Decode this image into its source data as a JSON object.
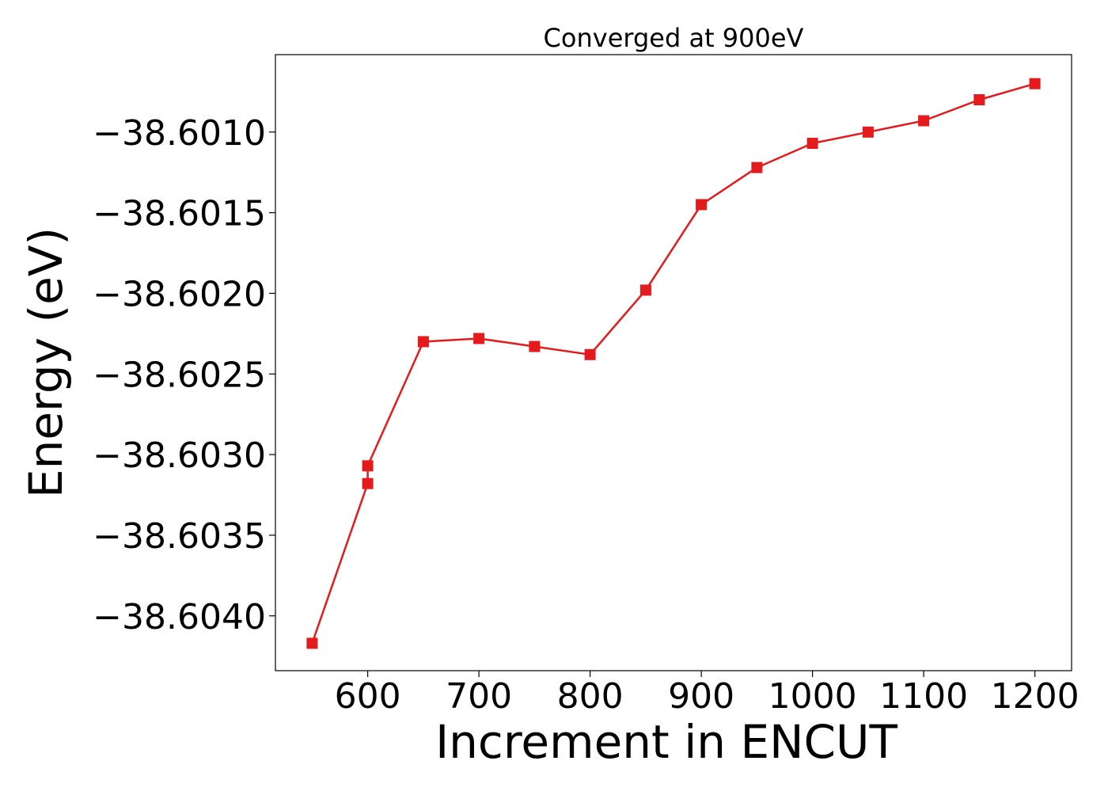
{
  "chart_data": {
    "type": "line",
    "title": "Converged at 900eV",
    "xlabel": "Increment in ENCUT",
    "ylabel": "Energy (eV)",
    "xlim": [
      517,
      1233
    ],
    "ylim": [
      -38.60434,
      -38.60052
    ],
    "x_ticks": [
      600,
      700,
      800,
      900,
      1000,
      1100,
      1200
    ],
    "x_tick_labels": [
      "600",
      "700",
      "800",
      "900",
      "1000",
      "1100",
      "1200"
    ],
    "y_ticks": [
      -38.601,
      -38.6015,
      -38.602,
      -38.6025,
      -38.603,
      -38.6035,
      -38.604
    ],
    "y_tick_labels": [
      "−38.6010",
      "−38.6015",
      "−38.6020",
      "−38.6025",
      "−38.6030",
      "−38.6035",
      "−38.6040"
    ],
    "grid": false,
    "series": [
      {
        "color": "#e41a1c",
        "marker": "square",
        "x": [
          550,
          600,
          600,
          650,
          700,
          750,
          800,
          850,
          900,
          950,
          1000,
          1050,
          1100,
          1150,
          1200
        ],
        "y": [
          -38.60417,
          -38.60318,
          -38.60307,
          -38.6023,
          -38.60228,
          -38.60233,
          -38.60238,
          -38.60198,
          -38.60145,
          -38.60122,
          -38.60107,
          -38.601,
          -38.60093,
          -38.6008,
          -38.6007
        ]
      }
    ]
  }
}
